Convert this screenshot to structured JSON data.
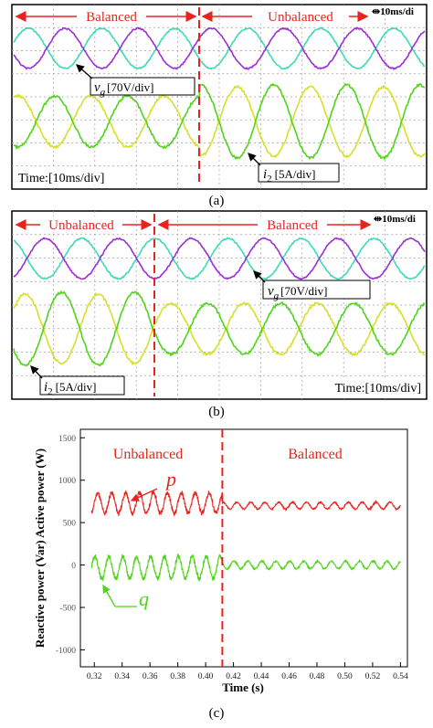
{
  "figure": {
    "panels": [
      {
        "caption": "(a)",
        "oscilloscope": {
          "left_label": "Balanced",
          "right_label": "Unbalanced",
          "scale_tag": "10ms/di",
          "voltage_label_symbol": "v",
          "voltage_label_sub": "g",
          "voltage_label_scale": "[70V/div]",
          "current_label_symbol": "i",
          "current_label_sub": "2",
          "current_label_scale": "[5A/div]",
          "time_label": "Time:[10ms/div]"
        }
      },
      {
        "caption": "(b)",
        "oscilloscope": {
          "left_label": "Unbalanced",
          "right_label": "Balanced",
          "scale_tag": "10ms/di",
          "voltage_label_symbol": "v",
          "voltage_label_sub": "g",
          "voltage_label_scale": "[70V/div]",
          "current_label_symbol": "i",
          "current_label_sub": "2",
          "current_label_scale": "[5A/div]",
          "time_label": "Time:[10ms/div]"
        }
      },
      {
        "caption": "(c)"
      }
    ]
  },
  "colors": {
    "grid": "#a0a0a0",
    "trace_cyan": "#3fd8b8",
    "trace_purple": "#9b2fd6",
    "trace_yellow": "#d6e02a",
    "trace_green": "#4fd41a",
    "marker_red": "#e8231e",
    "power_p": "#e8231e",
    "power_q": "#4fd41a",
    "annotation_red": "#e8231e"
  },
  "chart_data": {
    "type": "line",
    "xlabel": "Time (s)",
    "ylabel": "Reactive power (Var) Active power (W)",
    "xlim": [
      0.31,
      0.545
    ],
    "ylim": [
      -1200,
      1600
    ],
    "x_ticks": [
      "0.32",
      "0.34",
      "0.36",
      "0.38",
      "0.40",
      "0.42",
      "0.44",
      "0.46",
      "0.48",
      "0.50",
      "0.52",
      "0.54"
    ],
    "y_ticks": [
      "-1000",
      "-500",
      "0",
      "500",
      "1000",
      "1500"
    ],
    "grid": false,
    "transition_x": 0.412,
    "annotations": {
      "left": "Unbalanced",
      "right": "Balanced"
    },
    "series": [
      {
        "name": "p",
        "color": "#e8231e",
        "segments": [
          {
            "x_range": [
              0.318,
              0.412
            ],
            "mean": 730,
            "oscillation_amplitude": 120,
            "oscillation_frequency_hz": 100
          },
          {
            "x_range": [
              0.412,
              0.54
            ],
            "mean": 700,
            "oscillation_amplitude": 40,
            "oscillation_frequency_hz": 100
          }
        ]
      },
      {
        "name": "q",
        "color": "#4fd41a",
        "segments": [
          {
            "x_range": [
              0.318,
              0.412
            ],
            "mean": -30,
            "oscillation_amplitude": 130,
            "oscillation_frequency_hz": 100
          },
          {
            "x_range": [
              0.412,
              0.54
            ],
            "mean": 0,
            "oscillation_amplitude": 45,
            "oscillation_frequency_hz": 100
          }
        ]
      }
    ]
  }
}
